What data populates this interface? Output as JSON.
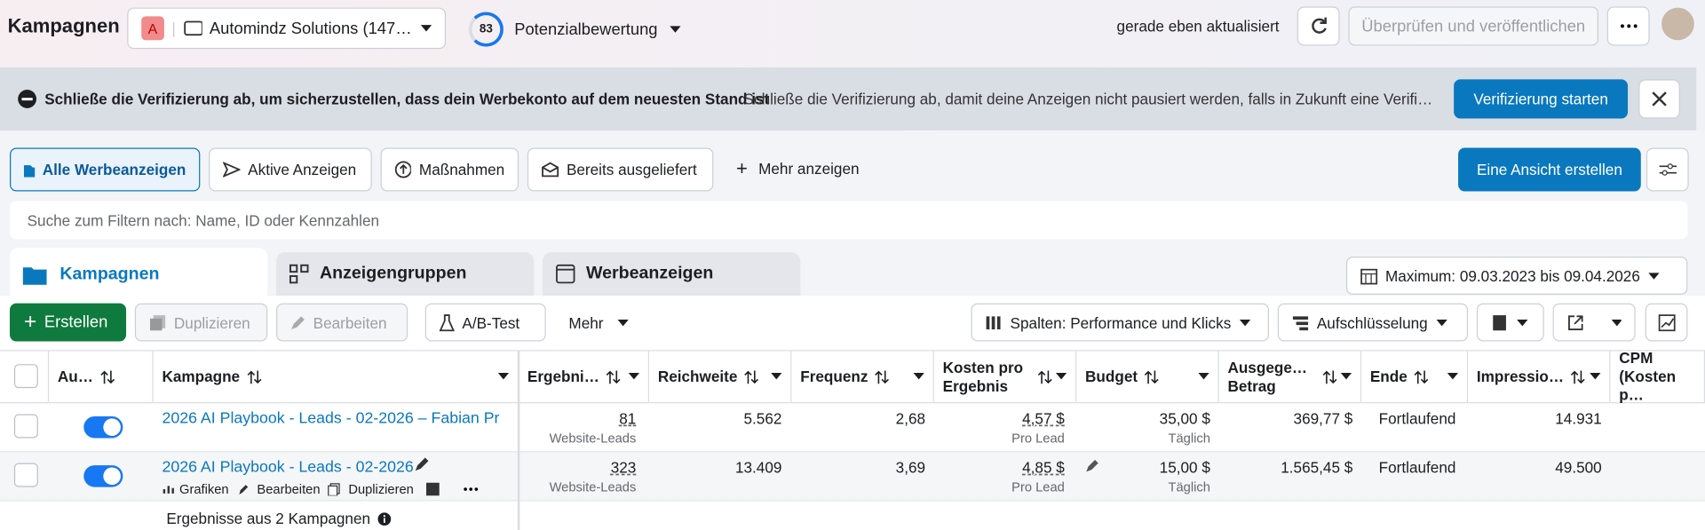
{
  "header": {
    "title": "Kampagnen",
    "account_badge": "A",
    "account_name": "Automindz Solutions (147…",
    "score": "83",
    "score_label": "Potenzialbewertung",
    "status": "gerade eben aktualisiert",
    "publish_button": "Überprüfen und veröffentlichen"
  },
  "banner": {
    "title": "Schließe die Verifizierung ab, um sicherzustellen, dass dein Werbekonto auf dem neuesten Stand ist",
    "text": "Schließe die Verifizierung ab, damit deine Anzeigen nicht pausiert werden, falls in Zukunft eine Verifi…",
    "button": "Verifizierung starten"
  },
  "filters": {
    "tabs": [
      "Alle Werbeanzeigen",
      "Aktive Anzeigen",
      "Maßnahmen",
      "Bereits ausgeliefert"
    ],
    "more": "Mehr anzeigen",
    "create_view": "Eine Ansicht erstellen",
    "search_placeholder": "Suche zum Filtern nach: Name, ID oder Kennzahlen"
  },
  "level_tabs": [
    "Kampagnen",
    "Anzeigengruppen",
    "Werbeanzeigen"
  ],
  "date_range": "Maximum: 09.03.2023 bis 09.04.2026",
  "toolbar": {
    "create": "Erstellen",
    "duplicate": "Duplizieren",
    "edit": "Bearbeiten",
    "ab_test": "A/B-Test",
    "more": "Mehr",
    "columns": "Spalten: Performance und Klicks",
    "breakdown": "Aufschlüsselung"
  },
  "table": {
    "columns": [
      "Au…",
      "Kampagne",
      "Ergebni…",
      "Reichweite",
      "Frequenz",
      "Kosten pro Ergebnis",
      "Budget",
      "Ausgege… Betrag",
      "Ende",
      "Impressio…",
      "CPM (Kosten p…"
    ],
    "rows": [
      {
        "name": "2026 AI Playbook - Leads - 02-2026 – Fabian Pr…",
        "results": "81",
        "results_label": "Website-Leads",
        "reach": "5.562",
        "frequency": "2,68",
        "cost": "4,57 $",
        "cost_label": "Pro Lead",
        "budget": "35,00 $",
        "budget_label": "Täglich",
        "spent": "369,77 $",
        "end": "Fortlaufend",
        "impressions": "14.931"
      },
      {
        "name": "2026 AI Playbook - Leads - 02-2026",
        "results": "323",
        "results_label": "Website-Leads",
        "reach": "13.409",
        "frequency": "3,69",
        "cost": "4,85 $",
        "cost_label": "Pro Lead",
        "budget": "15,00 $",
        "budget_label": "Täglich",
        "spent": "1.565,45 $",
        "end": "Fortlaufend",
        "impressions": "49.500"
      }
    ],
    "row_actions": [
      "Grafiken",
      "Bearbeiten",
      "Duplizieren"
    ],
    "footer": "Ergebnisse aus 2 Kampagnen"
  }
}
